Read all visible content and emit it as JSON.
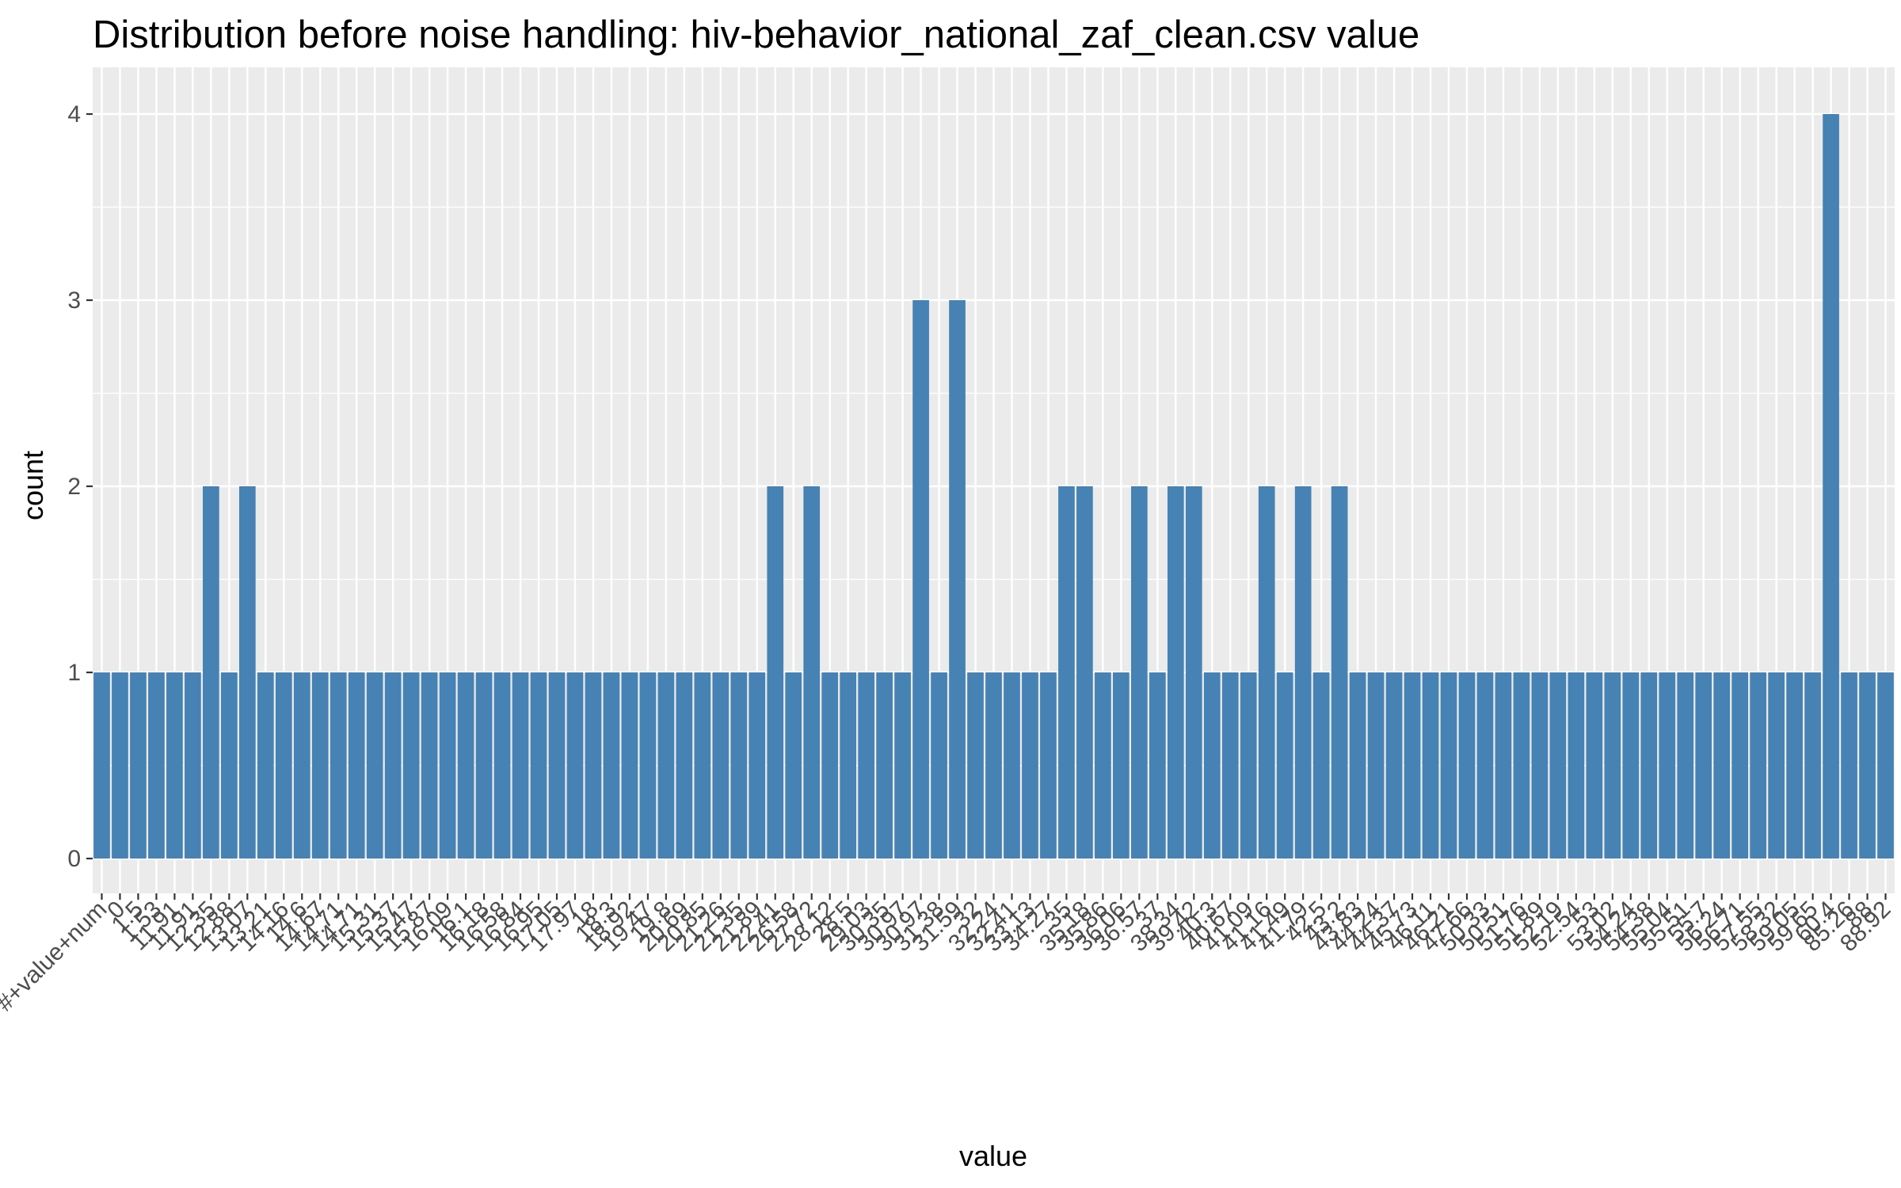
{
  "chart_data": {
    "type": "bar",
    "title": "Distribution before noise handling: hiv-behavior_national_zaf_clean.csv value",
    "xlabel": "value",
    "ylabel": "count",
    "ylim": [
      0,
      4
    ],
    "yticks": [
      0,
      1,
      2,
      3,
      4
    ],
    "grid": true,
    "bar_color": "#4682B4",
    "panel_color": "#EBEBEB",
    "categories": [
      "#+value+num",
      "0",
      "1.5",
      "1.53",
      "11.91",
      "11.91",
      "12.35",
      "12.88",
      "13.07",
      "13.21",
      "14.16",
      "14.6",
      "14.67",
      "14.71",
      "14.71",
      "15.31",
      "15.37",
      "15.47",
      "15.87",
      "16.09",
      "16.1",
      "16.18",
      "16.58",
      "16.84",
      "16.95",
      "17.05",
      "17.97",
      "18",
      "18.3",
      "18.92",
      "19.47",
      "19.8",
      "20.69",
      "20.85",
      "21.26",
      "21.35",
      "21.89",
      "22.41",
      "26.58",
      "27.72",
      "28.12",
      "28.5",
      "29.03",
      "30.35",
      "30.97",
      "30.97",
      "31.38",
      "31.59",
      "32",
      "32.24",
      "32.41",
      "33.13",
      "34.27",
      "35",
      "35.18",
      "35.86",
      "36.06",
      "36.57",
      "37",
      "38.34",
      "39.42",
      "40.3",
      "40.67",
      "41.09",
      "41.16",
      "41.49",
      "41.79",
      "42.5",
      "43.2",
      "43.83",
      "44.24",
      "44.37",
      "45.73",
      "46.11",
      "46.21",
      "47.66",
      "50.33",
      "50.51",
      "51.76",
      "51.89",
      "52.19",
      "52.54",
      "53",
      "53.02",
      "54.24",
      "54.38",
      "55.04",
      "55.51",
      "55.7",
      "56.24",
      "56.71",
      "57.55",
      "58.32",
      "59.05",
      "59.65",
      "60.4",
      "85.26",
      "88",
      "88.92"
    ],
    "values": [
      1,
      1,
      1,
      1,
      1,
      1,
      2,
      1,
      2,
      1,
      1,
      1,
      1,
      1,
      1,
      1,
      1,
      1,
      1,
      1,
      1,
      1,
      1,
      1,
      1,
      1,
      1,
      1,
      1,
      1,
      1,
      1,
      1,
      1,
      1,
      1,
      1,
      2,
      1,
      2,
      1,
      1,
      1,
      1,
      1,
      3,
      1,
      3,
      1,
      1,
      1,
      1,
      1,
      2,
      2,
      1,
      1,
      2,
      1,
      2,
      2,
      1,
      1,
      1,
      2,
      1,
      2,
      1,
      2,
      1,
      1,
      1,
      1,
      1,
      1,
      1,
      1,
      1,
      1,
      1,
      1,
      1,
      1,
      1,
      1,
      1,
      1,
      1,
      1,
      1,
      1,
      1,
      1,
      1,
      1,
      4,
      1,
      1,
      1
    ]
  }
}
